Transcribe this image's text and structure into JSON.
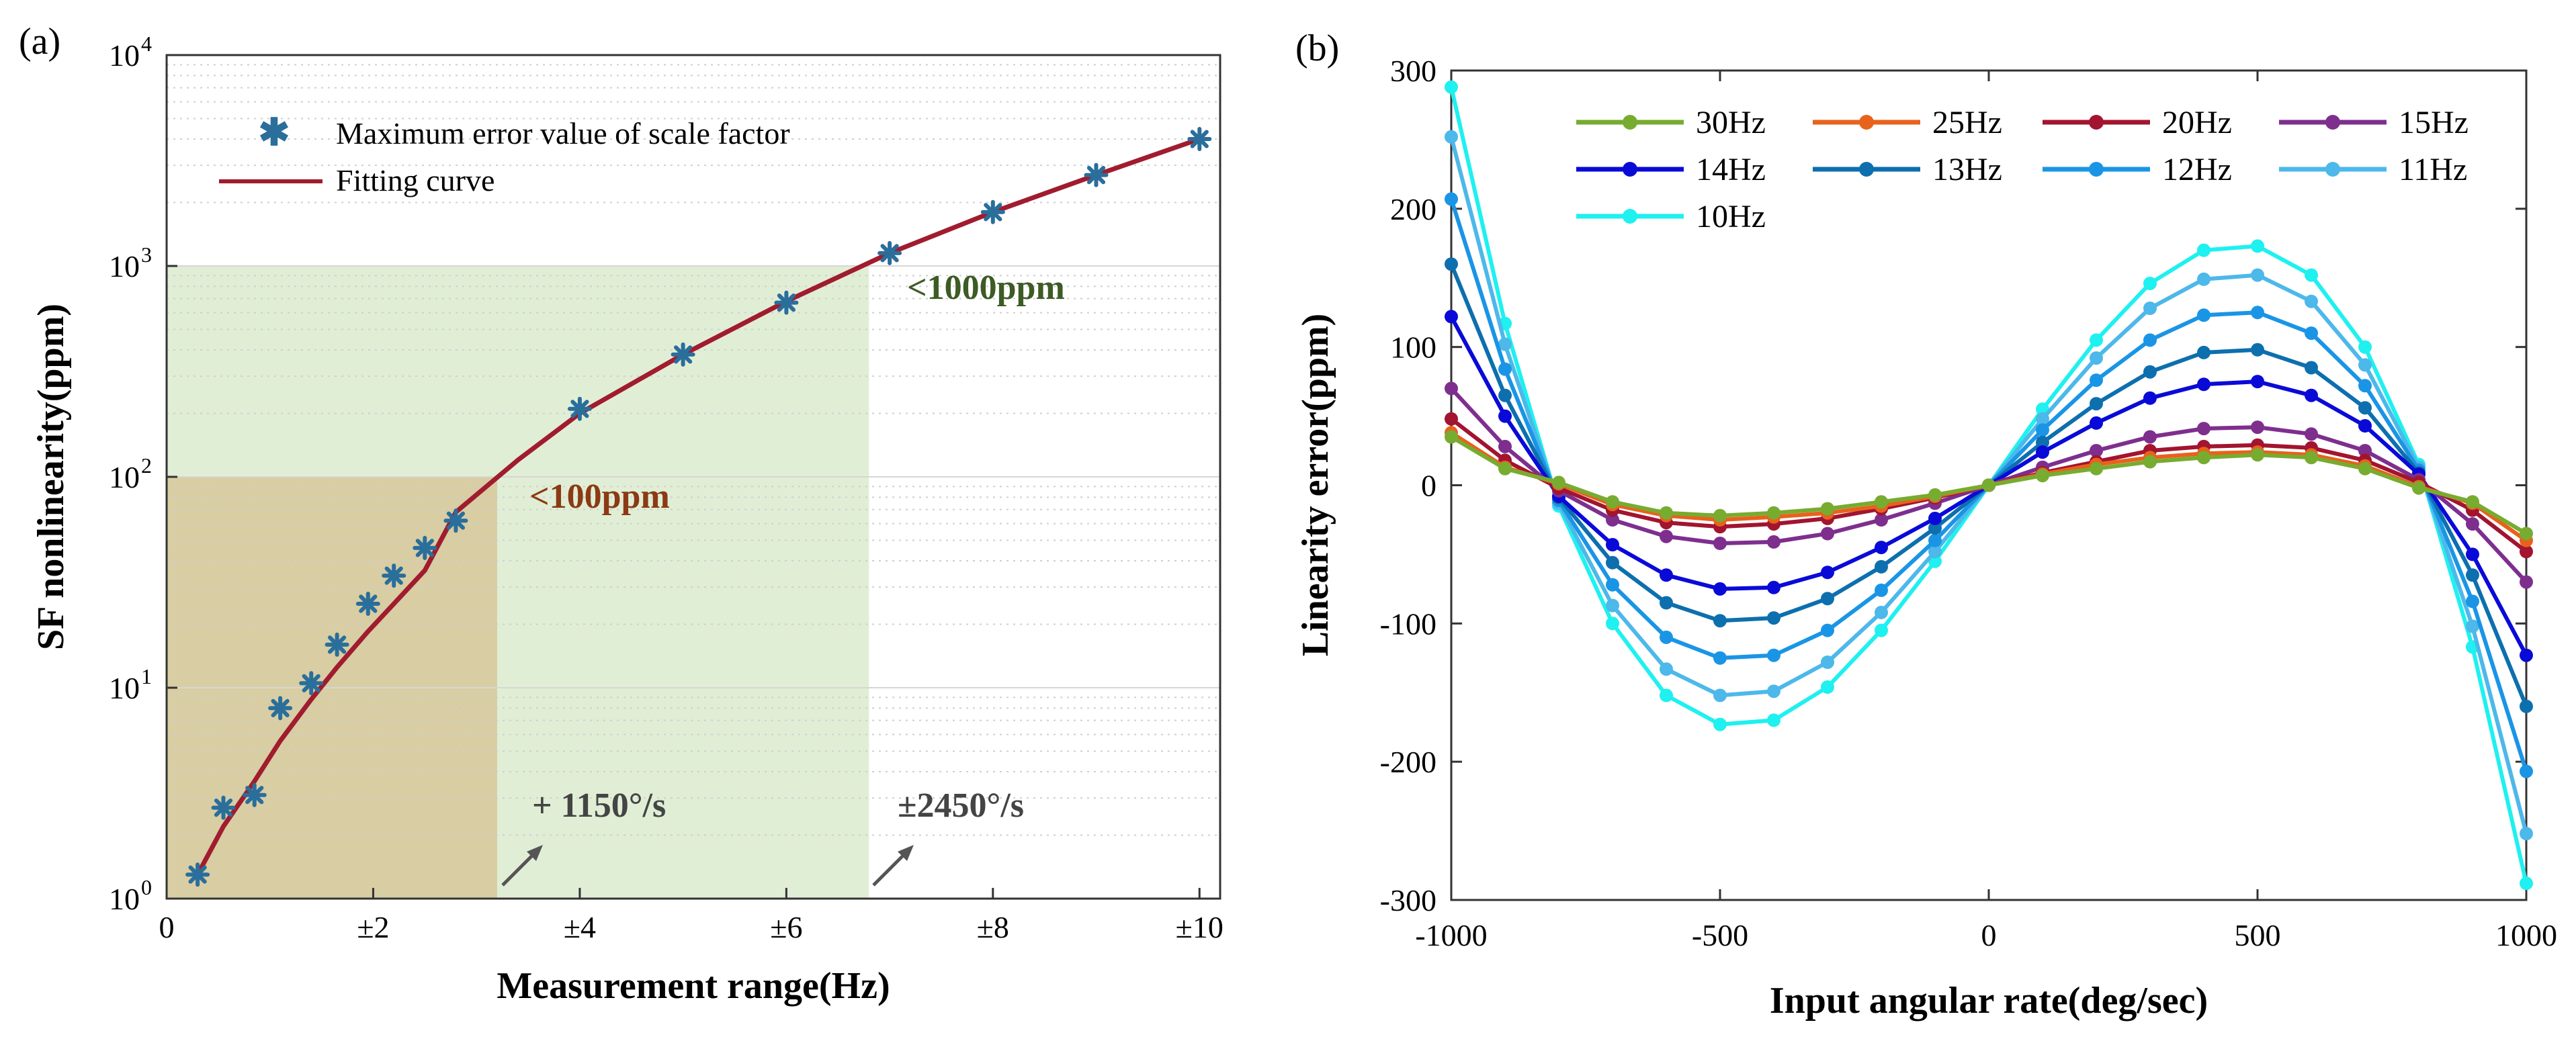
{
  "chart_data": [
    {
      "type": "scatter",
      "panel_label": "(a)",
      "xlabel": "Measurement range(Hz)",
      "ylabel": "SF nonlinearity(ppm)",
      "xlim": [
        0,
        10.2
      ],
      "ylim": [
        1,
        10000
      ],
      "yscale": "log",
      "x_ticks": [
        0,
        2,
        4,
        6,
        8,
        10
      ],
      "x_tick_labels": [
        "0",
        "±2",
        "±4",
        "±6",
        "±8",
        "±10"
      ],
      "y_ticks": [
        1,
        10,
        100,
        1000,
        10000
      ],
      "y_tick_base": "10",
      "y_tick_exponents": [
        "0",
        "1",
        "2",
        "3",
        "4"
      ],
      "legend": {
        "position": "top-left",
        "entries": [
          "Maximum error value of scale factor",
          "Fitting curve"
        ]
      },
      "series": [
        {
          "name": "Maximum error value of scale factor",
          "marker": "asterisk",
          "color": "#2a6e9b",
          "x": [
            0.3,
            0.55,
            0.85,
            1.1,
            1.4,
            1.65,
            1.95,
            2.2,
            2.5,
            2.8,
            4.0,
            5.0,
            6.0,
            7.0,
            8.0,
            9.0,
            10.0
          ],
          "y": [
            1.3,
            2.7,
            3.1,
            8.0,
            10.5,
            16.0,
            25.0,
            34.0,
            46.0,
            62.0,
            210.0,
            380.0,
            670.0,
            1150.0,
            1800.0,
            2700.0,
            4000.0
          ]
        },
        {
          "name": "Fitting curve",
          "type": "line",
          "color": "#a01c2e",
          "x": [
            0.3,
            0.55,
            0.85,
            1.1,
            1.4,
            1.65,
            1.95,
            2.2,
            2.5,
            2.8,
            3.4,
            4.0,
            5.0,
            6.0,
            7.0,
            8.0,
            9.0,
            10.0
          ],
          "y": [
            1.3,
            2.2,
            3.6,
            5.6,
            8.8,
            12.5,
            18.5,
            25.0,
            36.0,
            68.0,
            120.0,
            200.0,
            380.0,
            680.0,
            1150.0,
            1800.0,
            2700.0,
            4000.0
          ]
        }
      ],
      "shaded_regions": [
        {
          "x_max": 3.2,
          "y_max": 100,
          "color": "#d6c79a",
          "label": "<100ppm"
        },
        {
          "x_max": 6.8,
          "y_max": 1000,
          "color": "#dcebcf",
          "label": "<1000ppm"
        }
      ],
      "annotations": [
        {
          "text": "<100ppm",
          "color": "#8b3a14"
        },
        {
          "text": "<1000ppm",
          "color": "#3d5b24"
        },
        {
          "text": "+ 1150°/s",
          "color": "#444444"
        },
        {
          "text": "±2450°/s",
          "color": "#444444"
        }
      ]
    },
    {
      "type": "line",
      "panel_label": "(b)",
      "xlabel": "Input angular rate(deg/sec)",
      "ylabel": "Linearity error(ppm)",
      "xlim": [
        -1000,
        1000
      ],
      "ylim": [
        -300,
        300
      ],
      "x_ticks": [
        -1000,
        -500,
        0,
        500,
        1000
      ],
      "x_tick_labels": [
        "-1000",
        "-500",
        "0",
        "500",
        "1000"
      ],
      "y_ticks": [
        -300,
        -200,
        -100,
        0,
        100,
        200,
        300
      ],
      "y_tick_labels": [
        "-300",
        "-200",
        "-100",
        "0",
        "100",
        "200",
        "300"
      ],
      "legend": {
        "position": "top",
        "columns": 4
      },
      "x": [
        -1000,
        -900,
        -800,
        -700,
        -600,
        -500,
        -400,
        -300,
        -200,
        -100,
        0,
        100,
        200,
        300,
        400,
        500,
        600,
        700,
        800,
        900,
        1000
      ],
      "series": [
        {
          "name": "30Hz",
          "color": "#77ac30",
          "values": [
            35,
            12,
            2,
            -12,
            -20,
            -22,
            -20,
            -17,
            -12,
            -7,
            0,
            7,
            12,
            17,
            20,
            22,
            20,
            12,
            -2,
            -12,
            -35
          ]
        },
        {
          "name": "25Hz",
          "color": "#e8621c",
          "values": [
            38,
            13,
            1,
            -14,
            -22,
            -25,
            -23,
            -20,
            -15,
            -8,
            0,
            8,
            15,
            20,
            23,
            24,
            22,
            14,
            -1,
            -13,
            -40
          ]
        },
        {
          "name": "20Hz",
          "color": "#a2142f",
          "values": [
            48,
            18,
            -2,
            -18,
            -27,
            -30,
            -28,
            -24,
            -17,
            -9,
            0,
            9,
            17,
            25,
            28,
            29,
            27,
            18,
            2,
            -18,
            -48
          ]
        },
        {
          "name": "15Hz",
          "color": "#7e2f8e",
          "values": [
            70,
            28,
            -4,
            -25,
            -37,
            -42,
            -41,
            -35,
            -25,
            -13,
            0,
            13,
            25,
            35,
            41,
            42,
            37,
            25,
            4,
            -28,
            -70
          ]
        },
        {
          "name": "14Hz",
          "color": "#0a0ad8",
          "values": [
            122,
            50,
            -8,
            -43,
            -65,
            -75,
            -74,
            -63,
            -45,
            -24,
            0,
            24,
            45,
            63,
            73,
            75,
            65,
            43,
            8,
            -50,
            -123
          ]
        },
        {
          "name": "13Hz",
          "color": "#0d6fae",
          "values": [
            160,
            65,
            -9,
            -56,
            -85,
            -98,
            -96,
            -82,
            -59,
            -31,
            0,
            31,
            59,
            82,
            96,
            98,
            85,
            56,
            9,
            -65,
            -160
          ]
        },
        {
          "name": "12Hz",
          "color": "#1a95e6",
          "values": [
            207,
            84,
            -11,
            -72,
            -110,
            -125,
            -123,
            -105,
            -76,
            -40,
            0,
            40,
            76,
            105,
            123,
            125,
            110,
            72,
            11,
            -84,
            -207
          ]
        },
        {
          "name": "11Hz",
          "color": "#4db8ea",
          "values": [
            252,
            102,
            -13,
            -87,
            -133,
            -152,
            -149,
            -128,
            -92,
            -48,
            0,
            48,
            92,
            128,
            149,
            152,
            133,
            87,
            13,
            -102,
            -252
          ]
        },
        {
          "name": "10Hz",
          "color": "#1ff0f0",
          "values": [
            288,
            117,
            -15,
            -100,
            -152,
            -173,
            -170,
            -146,
            -105,
            -55,
            0,
            55,
            105,
            146,
            170,
            173,
            152,
            100,
            15,
            -117,
            -288
          ]
        }
      ]
    }
  ]
}
